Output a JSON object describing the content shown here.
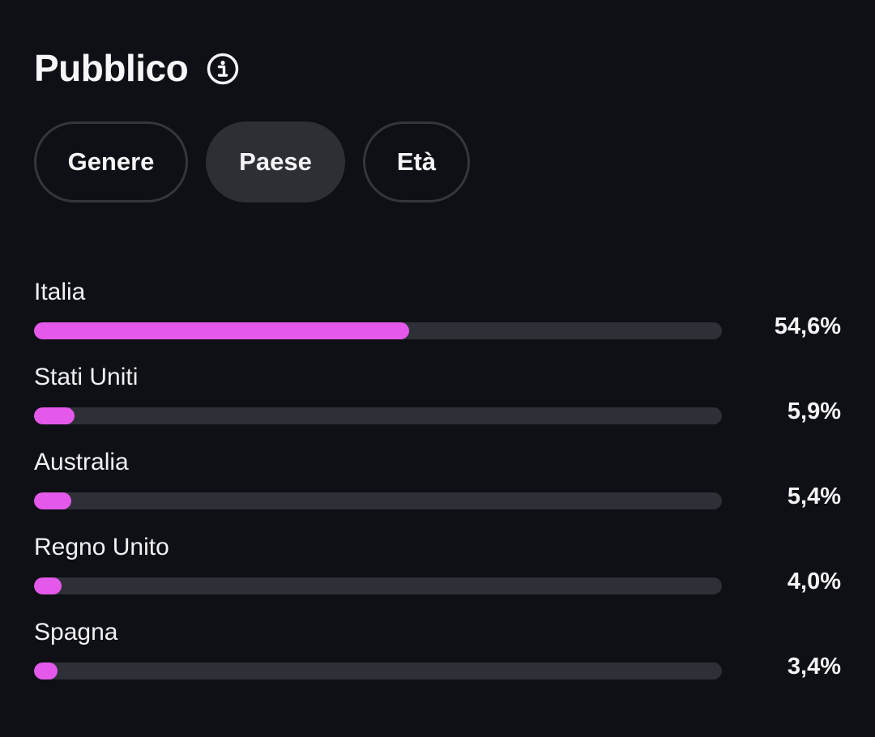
{
  "header": {
    "title": "Pubblico",
    "info_icon": "info-icon"
  },
  "tabs": [
    {
      "label": "Genere",
      "selected": false
    },
    {
      "label": "Paese",
      "selected": true
    },
    {
      "label": "Età",
      "selected": false
    }
  ],
  "colors": {
    "background": "#0e1015",
    "bar_fill": "#e458ea",
    "bar_track": "#2e3037",
    "selected_tab": "#2d2f35"
  },
  "chart_data": {
    "type": "bar",
    "categories": [
      "Italia",
      "Stati Uniti",
      "Australia",
      "Regno Unito",
      "Spagna"
    ],
    "values": [
      54.6,
      5.9,
      5.4,
      4.0,
      3.4
    ],
    "value_labels": [
      "54,6%",
      "5,9%",
      "5,4%",
      "4,0%",
      "3,4%"
    ],
    "orientation": "horizontal",
    "xlim": [
      0,
      100
    ]
  }
}
